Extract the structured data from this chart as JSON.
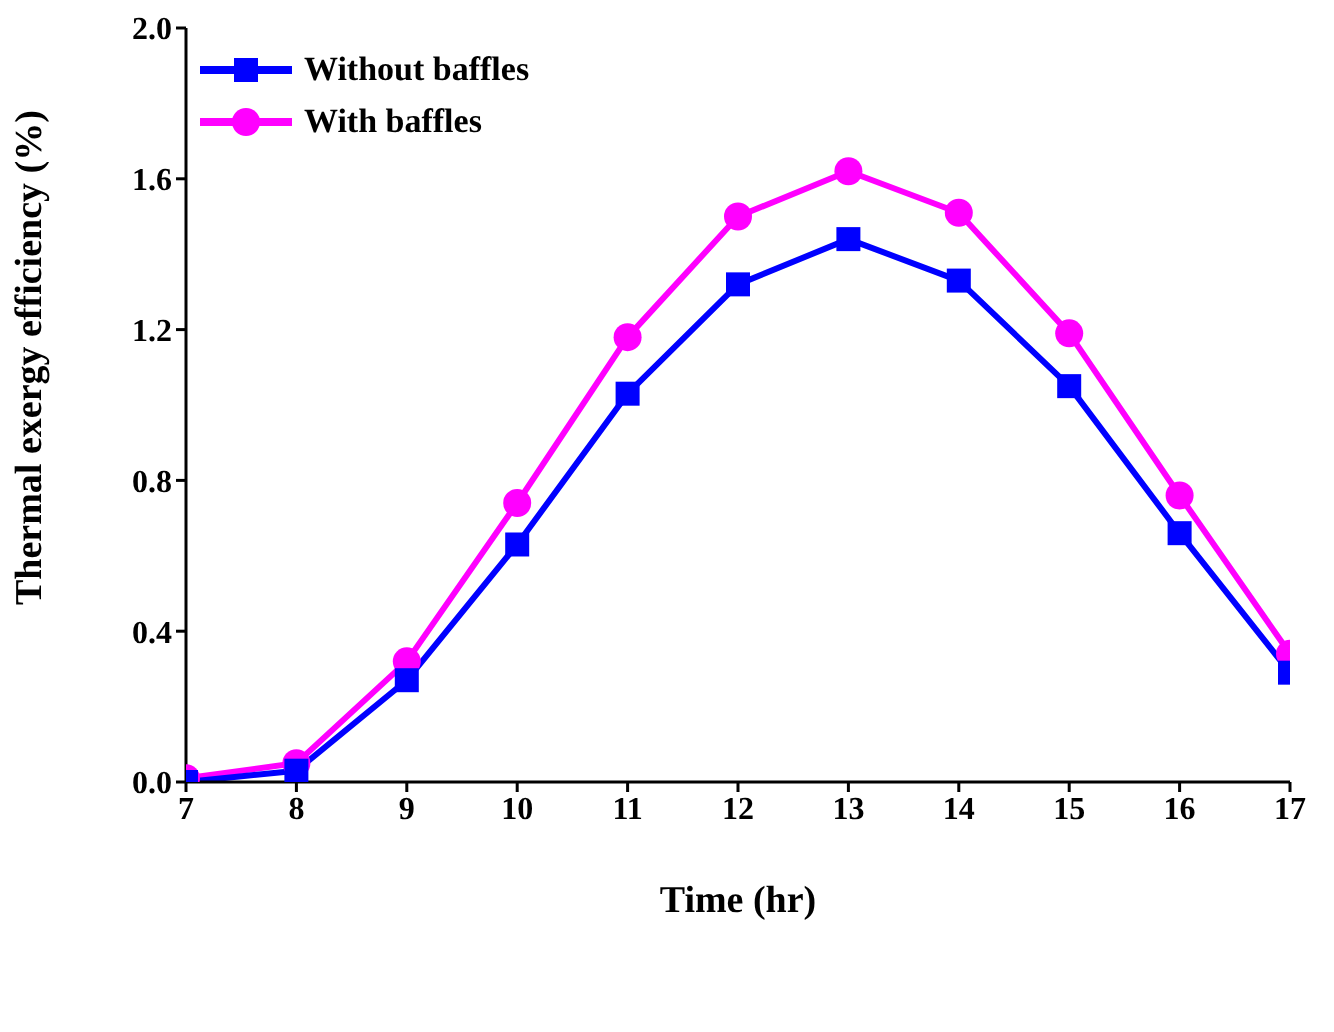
{
  "chart_data": {
    "type": "line",
    "xlabel": "Time (hr)",
    "ylabel": "Thermal exergy efficiency (%)",
    "x": [
      7,
      8,
      9,
      10,
      11,
      12,
      13,
      14,
      15,
      16,
      17
    ],
    "xlim": [
      7,
      17
    ],
    "xticks": [
      7,
      8,
      9,
      10,
      11,
      12,
      13,
      14,
      15,
      16,
      17
    ],
    "ylim": [
      0,
      2.0
    ],
    "yticks": [
      {
        "value": 0,
        "label": "0.0"
      },
      {
        "value": 0.4,
        "label": "0.4"
      },
      {
        "value": 0.8,
        "label": "0.8"
      },
      {
        "value": 1.2,
        "label": "1.2"
      },
      {
        "value": 1.6,
        "label": "1.6"
      },
      {
        "value": 2.0,
        "label": "2.0"
      }
    ],
    "legend": "top left",
    "line_style": "solid",
    "series": [
      {
        "name": "Without baffles",
        "color": "#0000ff",
        "marker": "square",
        "values": [
          0.0,
          0.03,
          0.27,
          0.63,
          1.03,
          1.32,
          1.44,
          1.33,
          1.05,
          0.66,
          0.29
        ]
      },
      {
        "name": "With baffles",
        "color": "#ff00ff",
        "marker": "circle",
        "values": [
          0.01,
          0.05,
          0.32,
          0.74,
          1.18,
          1.5,
          1.62,
          1.51,
          1.19,
          0.76,
          0.34
        ]
      }
    ]
  }
}
